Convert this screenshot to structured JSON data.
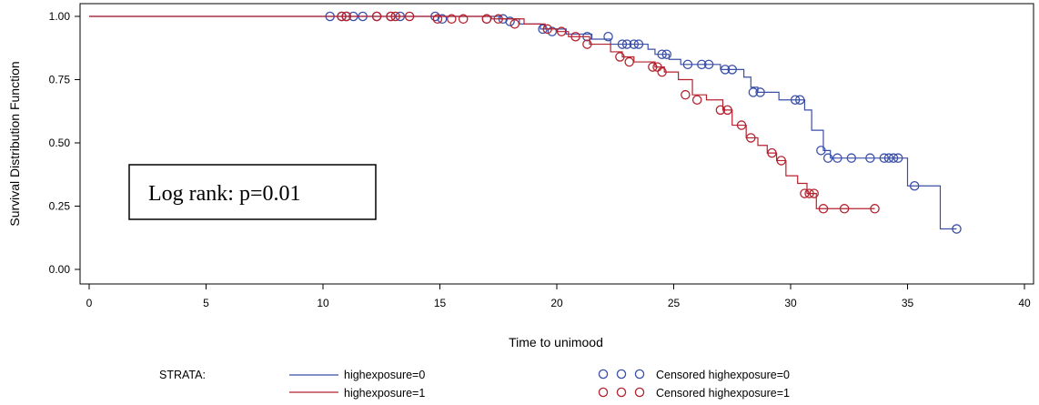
{
  "chart_data": {
    "type": "line",
    "xlabel": "Time to unimood",
    "ylabel": "Survival Distribution Function",
    "xlim": [
      0,
      40
    ],
    "ylim": [
      0,
      1
    ],
    "x_ticks": [
      "0",
      "5",
      "10",
      "15",
      "20",
      "25",
      "30",
      "35",
      "40"
    ],
    "y_ticks": [
      "0.00",
      "0.25",
      "0.50",
      "0.75",
      "1.00"
    ],
    "annotation": "Log rank: p=0.01",
    "legend": {
      "title": "STRATA:",
      "line_entries": [
        "highexposure=0",
        "highexposure=1"
      ],
      "censor_entries": [
        "Censored highexposure=0",
        "Censored highexposure=1"
      ]
    },
    "series": [
      {
        "name": "highexposure=0",
        "color": "#3a4fa8",
        "steps": [
          [
            0,
            1.0
          ],
          [
            17.6,
            0.99
          ],
          [
            18.4,
            0.97
          ],
          [
            19.3,
            0.95
          ],
          [
            20.4,
            0.93
          ],
          [
            21.5,
            0.91
          ],
          [
            22.3,
            0.89
          ],
          [
            23.9,
            0.87
          ],
          [
            24.2,
            0.85
          ],
          [
            24.8,
            0.83
          ],
          [
            25.3,
            0.81
          ],
          [
            27.0,
            0.79
          ],
          [
            28.0,
            0.76
          ],
          [
            28.3,
            0.72
          ],
          [
            28.6,
            0.7
          ],
          [
            29.5,
            0.67
          ],
          [
            30.6,
            0.63
          ],
          [
            30.9,
            0.55
          ],
          [
            31.4,
            0.47
          ],
          [
            31.7,
            0.44
          ],
          [
            35.0,
            0.33
          ],
          [
            36.4,
            0.16
          ],
          [
            37.1,
            0.16
          ]
        ],
        "censored": [
          [
            10.3,
            1.0
          ],
          [
            10.8,
            1.0
          ],
          [
            11.0,
            1.0
          ],
          [
            11.3,
            1.0
          ],
          [
            11.7,
            1.0
          ],
          [
            12.3,
            1.0
          ],
          [
            12.9,
            1.0
          ],
          [
            13.3,
            1.0
          ],
          [
            14.8,
            1.0
          ],
          [
            15.1,
            0.99
          ],
          [
            17.0,
            0.99
          ],
          [
            17.7,
            0.99
          ],
          [
            18.0,
            0.98
          ],
          [
            19.4,
            0.95
          ],
          [
            19.8,
            0.94
          ],
          [
            21.3,
            0.92
          ],
          [
            22.2,
            0.92
          ],
          [
            22.8,
            0.89
          ],
          [
            23.0,
            0.89
          ],
          [
            23.3,
            0.89
          ],
          [
            23.5,
            0.89
          ],
          [
            24.5,
            0.85
          ],
          [
            24.7,
            0.85
          ],
          [
            25.6,
            0.81
          ],
          [
            26.2,
            0.81
          ],
          [
            26.5,
            0.81
          ],
          [
            27.2,
            0.79
          ],
          [
            27.5,
            0.79
          ],
          [
            28.4,
            0.7
          ],
          [
            28.7,
            0.7
          ],
          [
            30.2,
            0.67
          ],
          [
            30.4,
            0.67
          ],
          [
            31.3,
            0.47
          ],
          [
            31.6,
            0.44
          ],
          [
            32.0,
            0.44
          ],
          [
            32.6,
            0.44
          ],
          [
            33.4,
            0.44
          ],
          [
            34.0,
            0.44
          ],
          [
            34.2,
            0.44
          ],
          [
            34.4,
            0.44
          ],
          [
            34.6,
            0.44
          ],
          [
            35.3,
            0.33
          ],
          [
            37.1,
            0.16
          ]
        ]
      },
      {
        "name": "highexposure=1",
        "color": "#b5222e",
        "steps": [
          [
            0,
            1.0
          ],
          [
            17.2,
            0.99
          ],
          [
            18.6,
            0.97
          ],
          [
            19.5,
            0.95
          ],
          [
            20.0,
            0.94
          ],
          [
            20.5,
            0.92
          ],
          [
            21.4,
            0.89
          ],
          [
            22.3,
            0.86
          ],
          [
            22.8,
            0.84
          ],
          [
            23.3,
            0.82
          ],
          [
            24.2,
            0.8
          ],
          [
            24.6,
            0.78
          ],
          [
            25.2,
            0.75
          ],
          [
            25.8,
            0.69
          ],
          [
            26.4,
            0.67
          ],
          [
            27.1,
            0.63
          ],
          [
            27.5,
            0.57
          ],
          [
            28.1,
            0.52
          ],
          [
            28.6,
            0.49
          ],
          [
            29.0,
            0.46
          ],
          [
            29.4,
            0.43
          ],
          [
            29.8,
            0.37
          ],
          [
            30.3,
            0.34
          ],
          [
            30.7,
            0.3
          ],
          [
            31.1,
            0.24
          ],
          [
            33.6,
            0.24
          ]
        ],
        "censored": [
          [
            10.8,
            1.0
          ],
          [
            11.0,
            1.0
          ],
          [
            12.3,
            1.0
          ],
          [
            12.9,
            1.0
          ],
          [
            13.1,
            1.0
          ],
          [
            13.7,
            1.0
          ],
          [
            14.9,
            0.99
          ],
          [
            15.5,
            0.99
          ],
          [
            16.0,
            0.99
          ],
          [
            17.0,
            0.99
          ],
          [
            17.5,
            0.99
          ],
          [
            18.2,
            0.97
          ],
          [
            19.6,
            0.95
          ],
          [
            20.2,
            0.94
          ],
          [
            20.8,
            0.92
          ],
          [
            21.3,
            0.89
          ],
          [
            22.7,
            0.84
          ],
          [
            23.1,
            0.82
          ],
          [
            24.1,
            0.8
          ],
          [
            24.3,
            0.8
          ],
          [
            24.5,
            0.78
          ],
          [
            25.5,
            0.69
          ],
          [
            26.0,
            0.67
          ],
          [
            27.0,
            0.63
          ],
          [
            27.3,
            0.63
          ],
          [
            27.9,
            0.57
          ],
          [
            28.3,
            0.52
          ],
          [
            29.2,
            0.46
          ],
          [
            29.6,
            0.43
          ],
          [
            30.6,
            0.3
          ],
          [
            30.8,
            0.3
          ],
          [
            31.0,
            0.3
          ],
          [
            31.4,
            0.24
          ],
          [
            32.3,
            0.24
          ],
          [
            33.6,
            0.24
          ]
        ]
      }
    ]
  }
}
